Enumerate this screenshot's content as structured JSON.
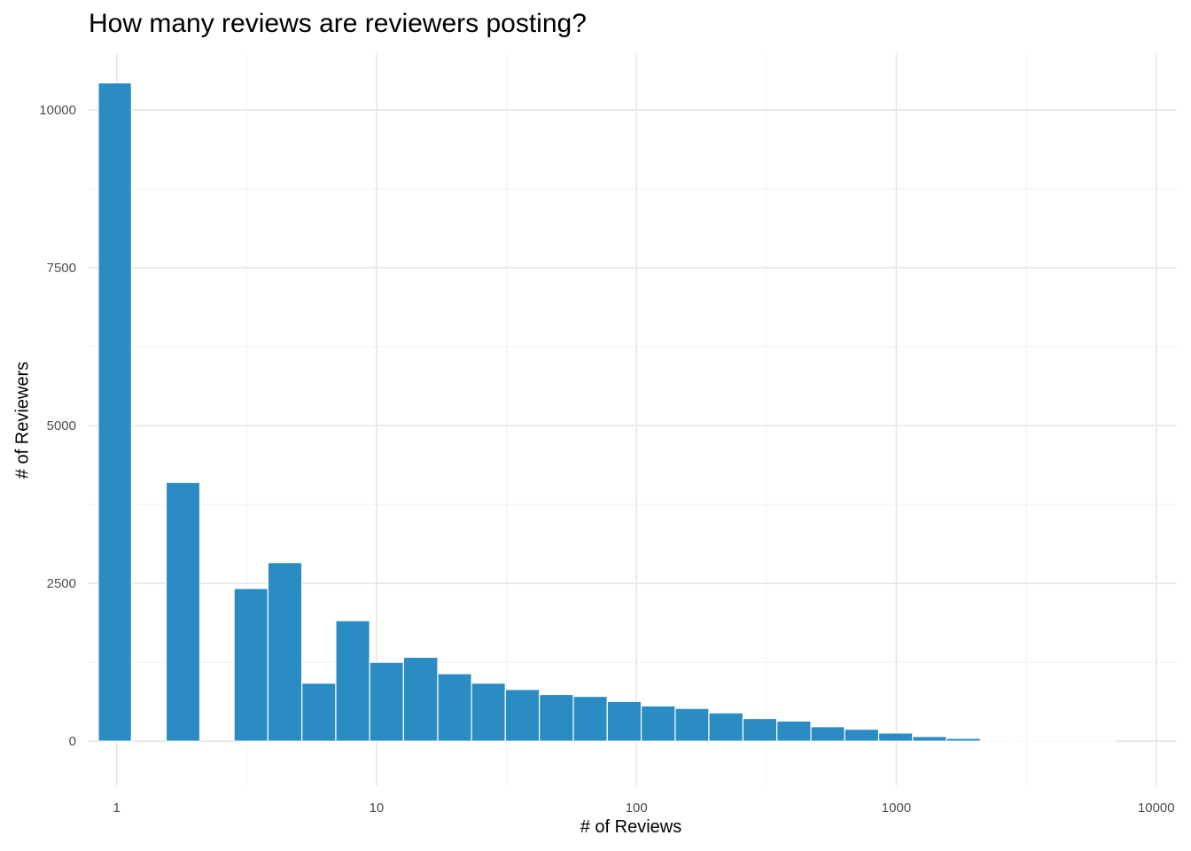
{
  "chart_data": {
    "type": "bar",
    "title": "How many reviews are reviewers posting?",
    "xlabel": "# of Reviews",
    "ylabel": "# of Reviewers",
    "x_scale": "log10",
    "xlim": [
      0.78,
      12000
    ],
    "ylim": [
      -700,
      10900
    ],
    "x_ticks": [
      1,
      10,
      100,
      1000,
      10000
    ],
    "x_tick_labels": [
      "1",
      "10",
      "100",
      "1000",
      "10000"
    ],
    "y_ticks": [
      0,
      2500,
      5000,
      7500,
      10000
    ],
    "y_tick_labels": [
      "0",
      "2500",
      "5000",
      "7500",
      "10000"
    ],
    "grid": true,
    "legend": "none",
    "bar_color": "#2b8cc4",
    "bins": [
      {
        "x0": 0.85,
        "x1": 1.14,
        "count": 10430
      },
      {
        "x0": 1.14,
        "x1": 1.55,
        "count": 0
      },
      {
        "x0": 1.55,
        "x1": 2.09,
        "count": 4100
      },
      {
        "x0": 2.09,
        "x1": 2.83,
        "count": 0
      },
      {
        "x0": 2.83,
        "x1": 3.82,
        "count": 2420
      },
      {
        "x0": 3.82,
        "x1": 5.16,
        "count": 2830
      },
      {
        "x0": 5.16,
        "x1": 6.97,
        "count": 920
      },
      {
        "x0": 6.97,
        "x1": 9.41,
        "count": 1910
      },
      {
        "x0": 9.41,
        "x1": 12.7,
        "count": 1250
      },
      {
        "x0": 12.7,
        "x1": 17.2,
        "count": 1330
      },
      {
        "x0": 17.2,
        "x1": 23.2,
        "count": 1070
      },
      {
        "x0": 23.2,
        "x1": 31.3,
        "count": 920
      },
      {
        "x0": 31.3,
        "x1": 42.3,
        "count": 820
      },
      {
        "x0": 42.3,
        "x1": 57.2,
        "count": 740
      },
      {
        "x0": 57.2,
        "x1": 77.2,
        "count": 710
      },
      {
        "x0": 77.2,
        "x1": 104.3,
        "count": 630
      },
      {
        "x0": 104.3,
        "x1": 141,
        "count": 560
      },
      {
        "x0": 141,
        "x1": 190,
        "count": 520
      },
      {
        "x0": 190,
        "x1": 257,
        "count": 450
      },
      {
        "x0": 257,
        "x1": 347,
        "count": 360
      },
      {
        "x0": 347,
        "x1": 469,
        "count": 320
      },
      {
        "x0": 469,
        "x1": 633,
        "count": 230
      },
      {
        "x0": 633,
        "x1": 855,
        "count": 190
      },
      {
        "x0": 855,
        "x1": 1155,
        "count": 130
      },
      {
        "x0": 1155,
        "x1": 1560,
        "count": 75
      },
      {
        "x0": 1560,
        "x1": 2107,
        "count": 45
      },
      {
        "x0": 2107,
        "x1": 2846,
        "count": 15
      },
      {
        "x0": 2846,
        "x1": 3844,
        "count": 2
      },
      {
        "x0": 3844,
        "x1": 5192,
        "count": 1
      },
      {
        "x0": 5192,
        "x1": 7013,
        "count": 1
      }
    ]
  }
}
